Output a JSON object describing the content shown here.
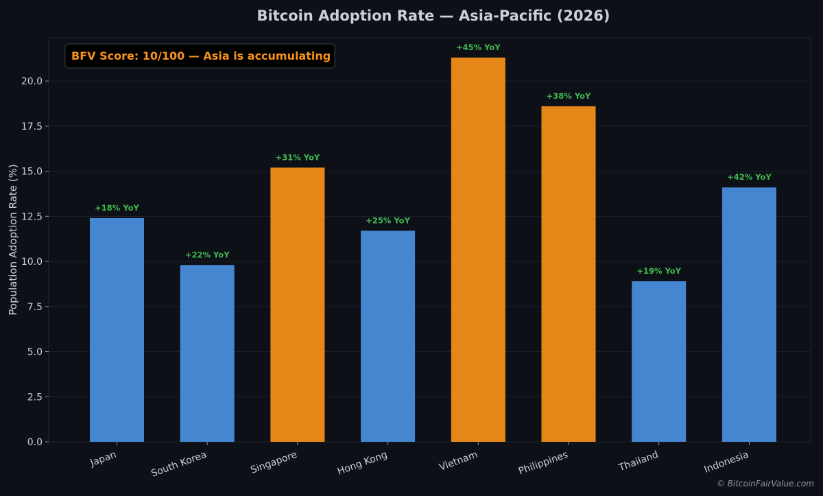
{
  "chart_data": {
    "type": "bar",
    "title": "Bitcoin Adoption Rate — Asia-Pacific (2026)",
    "xlabel": "",
    "ylabel": "Population Adoption Rate (%)",
    "categories": [
      "Japan",
      "South Korea",
      "Singapore",
      "Hong Kong",
      "Vietnam",
      "Philippines",
      "Thailand",
      "Indonesia"
    ],
    "values": [
      12.4,
      9.8,
      15.2,
      11.7,
      21.3,
      18.6,
      8.9,
      14.1
    ],
    "bar_labels": [
      "+18% YoY",
      "+22% YoY",
      "+31% YoY",
      "+25% YoY",
      "+45% YoY",
      "+38% YoY",
      "+19% YoY",
      "+42% YoY"
    ],
    "highlighted": [
      false,
      false,
      true,
      false,
      true,
      true,
      false,
      false
    ],
    "ylim": [
      0,
      22.4
    ],
    "yticks": [
      0,
      2.5,
      5,
      7.5,
      10,
      12.5,
      15,
      17.5,
      20
    ],
    "ytick_labels": [
      "0.0",
      "2.5",
      "5.0",
      "7.5",
      "10.0",
      "12.5",
      "15.0",
      "17.5",
      "20.0"
    ],
    "grid": true,
    "colors": {
      "default_bar": "#4a90e2",
      "highlight_bar": "#f7931a",
      "bar_label": "#3fb950",
      "annotation": "#f7931a",
      "background": "#0d1117",
      "text": "#c9d1d9",
      "watermark": "#8b949e"
    },
    "annotation": "BFV Score: 10/100 — Asia is accumulating",
    "watermark": "© BitcoinFairValue.com"
  }
}
